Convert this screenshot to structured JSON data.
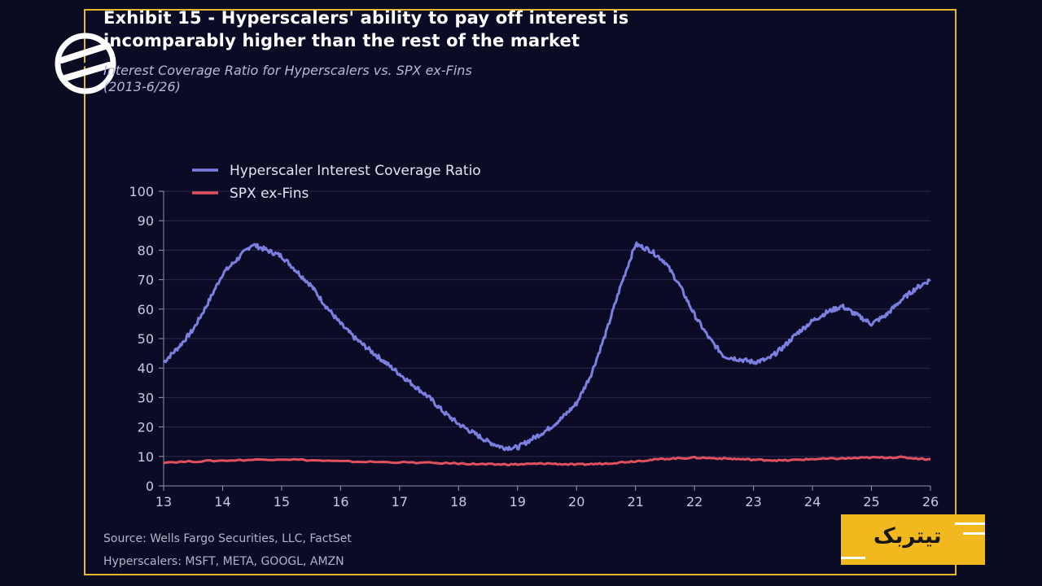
{
  "header": {
    "title_line1": "Exhibit 15 - Hyperscalers' ability to pay off interest is",
    "title_line2": "incomparably higher than the rest of the market",
    "subtitle_line1": "Interest Coverage Ratio for Hyperscalers vs. SPX ex-Fins",
    "subtitle_line2": "(2013-6/26)"
  },
  "footer": {
    "source": "Source: Wells Fargo Securities, LLC, FactSet",
    "note": "Hyperscalers: MSFT, META, GOOGL, AMZN"
  },
  "brand": {
    "text": "تیتربک",
    "color": "#f2b91e"
  },
  "chart_data": {
    "type": "line",
    "x_tick_labels": [
      "13",
      "14",
      "15",
      "16",
      "17",
      "18",
      "19",
      "20",
      "21",
      "22",
      "23",
      "24",
      "25",
      "26"
    ],
    "y_tick_labels": [
      "0",
      "10",
      "20",
      "30",
      "40",
      "50",
      "60",
      "70",
      "80",
      "90",
      "100"
    ],
    "xlim": [
      13,
      26
    ],
    "ylim": [
      0,
      100
    ],
    "grid": "horizontal",
    "legend_position": "top-left",
    "series": [
      {
        "name": "Hyperscaler Interest Coverage Ratio",
        "color": "#7b7fe0",
        "x": [
          13.0,
          13.25,
          13.5,
          13.75,
          14.0,
          14.25,
          14.5,
          14.75,
          15.0,
          15.25,
          15.5,
          15.75,
          16.0,
          16.25,
          16.5,
          16.75,
          17.0,
          17.25,
          17.5,
          17.75,
          18.0,
          18.25,
          18.5,
          18.75,
          19.0,
          19.25,
          19.5,
          19.75,
          20.0,
          20.25,
          20.5,
          20.75,
          21.0,
          21.25,
          21.5,
          21.75,
          22.0,
          22.25,
          22.5,
          22.75,
          23.0,
          23.25,
          23.5,
          23.75,
          24.0,
          24.25,
          24.5,
          24.75,
          25.0,
          25.25,
          25.5,
          25.75,
          26.0
        ],
        "y": [
          42,
          47,
          53,
          62,
          72,
          77,
          82,
          80,
          78,
          73,
          68,
          61,
          55,
          50,
          46,
          42,
          38,
          34,
          30,
          25,
          21,
          18,
          15,
          13,
          13,
          16,
          19,
          23,
          28,
          38,
          52,
          68,
          82,
          80,
          76,
          68,
          58,
          50,
          44,
          43,
          42,
          43,
          47,
          52,
          56,
          59,
          61,
          58,
          55,
          58,
          63,
          67,
          70
        ]
      },
      {
        "name": "SPX ex-Fins",
        "color": "#e0505e",
        "x": [
          13.0,
          14.0,
          15.0,
          16.0,
          17.0,
          18.0,
          18.5,
          19.0,
          19.5,
          20.0,
          20.5,
          21.0,
          21.5,
          22.0,
          22.5,
          23.0,
          23.5,
          24.0,
          24.5,
          25.0,
          25.5,
          26.0
        ],
        "y": [
          8,
          8.6,
          9.1,
          8.3,
          8.0,
          7.6,
          7.3,
          7.3,
          7.6,
          7.2,
          7.6,
          8.4,
          9.2,
          9.6,
          9.3,
          8.9,
          8.6,
          9.1,
          9.3,
          9.6,
          9.7,
          9.0
        ]
      }
    ]
  }
}
